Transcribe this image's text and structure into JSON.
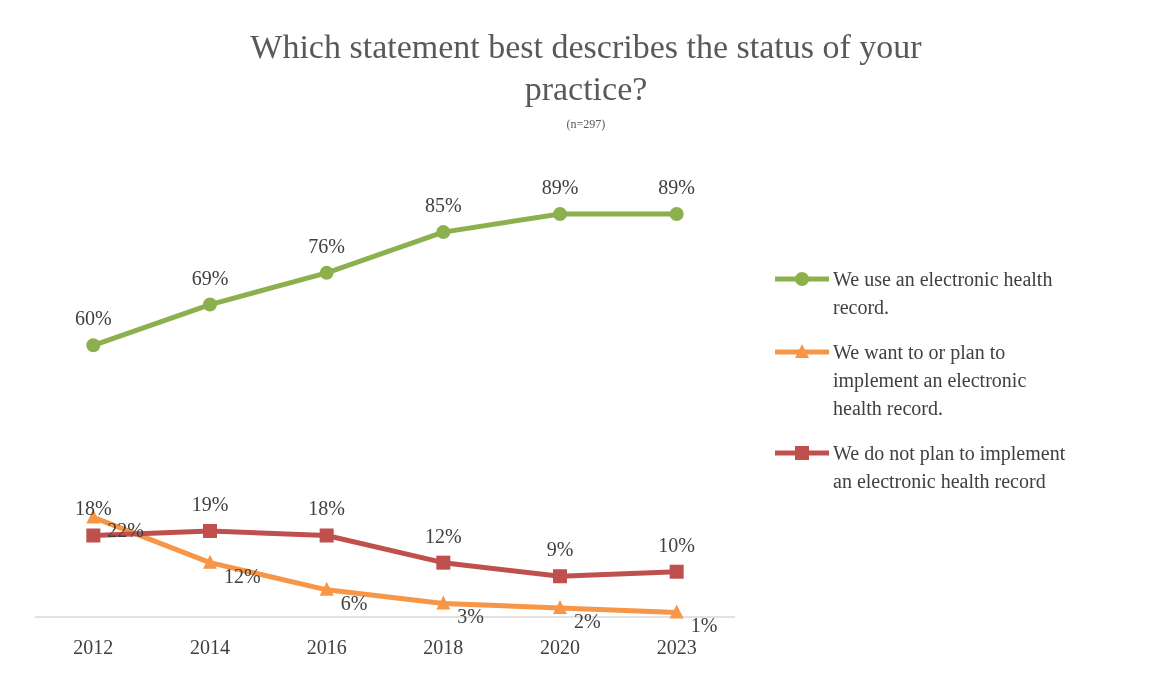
{
  "chart_data": {
    "type": "line",
    "title": "Which statement best describes the status of your practice?",
    "subtitle": "(n=297)",
    "categories": [
      "2012",
      "2014",
      "2016",
      "2018",
      "2020",
      "2023"
    ],
    "legend": "right",
    "series": [
      {
        "name": "We use an electronic health record.",
        "color": "#8db04f",
        "marker": "circle",
        "values": [
          60,
          69,
          76,
          85,
          89,
          89
        ],
        "value_labels": [
          "60%",
          "69%",
          "76%",
          "85%",
          "89%",
          "89%"
        ]
      },
      {
        "name": "We want to or plan to implement an electronic health record.",
        "color": "#f79646",
        "marker": "triangle",
        "values": [
          22,
          12,
          6,
          3,
          2,
          1
        ],
        "value_labels": [
          "22%",
          "12%",
          "6%",
          "3%",
          "2%",
          "1%"
        ]
      },
      {
        "name": "We do not plan to implement an electronic health record",
        "color": "#c0504d",
        "marker": "square",
        "values": [
          18,
          19,
          18,
          12,
          9,
          10
        ],
        "value_labels": [
          "18%",
          "19%",
          "18%",
          "12%",
          "9%",
          "10%"
        ]
      }
    ]
  }
}
